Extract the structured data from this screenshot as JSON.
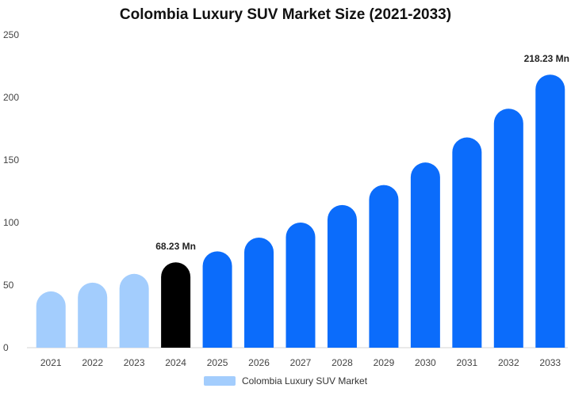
{
  "chart_data": {
    "type": "bar",
    "title": "Colombia Luxury SUV Market Size (2021-2033)",
    "categories": [
      "2021",
      "2022",
      "2023",
      "2024",
      "2025",
      "2026",
      "2027",
      "2028",
      "2029",
      "2030",
      "2031",
      "2032",
      "2033"
    ],
    "series": [
      {
        "name": "Colombia Luxury SUV Market",
        "values": [
          45,
          52,
          59,
          68.23,
          77,
          88,
          100,
          114,
          130,
          148,
          168,
          191,
          218.23
        ]
      }
    ],
    "ylim": [
      0,
      250
    ],
    "yticks": [
      0,
      50,
      100,
      150,
      200,
      250
    ],
    "data_labels": [
      {
        "category": "2024",
        "text": "68.23 Mn"
      },
      {
        "category": "2033",
        "text": "218.23 Mn"
      }
    ],
    "colors": {
      "historic": "#a3cdfd",
      "current": "#000000",
      "forecast": "#0b6cfb",
      "legend": "#a3cdfd"
    },
    "bar_color_keys": [
      "historic",
      "historic",
      "historic",
      "current",
      "forecast",
      "forecast",
      "forecast",
      "forecast",
      "forecast",
      "forecast",
      "forecast",
      "forecast",
      "forecast"
    ],
    "legend_position": "bottom",
    "grid": false
  }
}
